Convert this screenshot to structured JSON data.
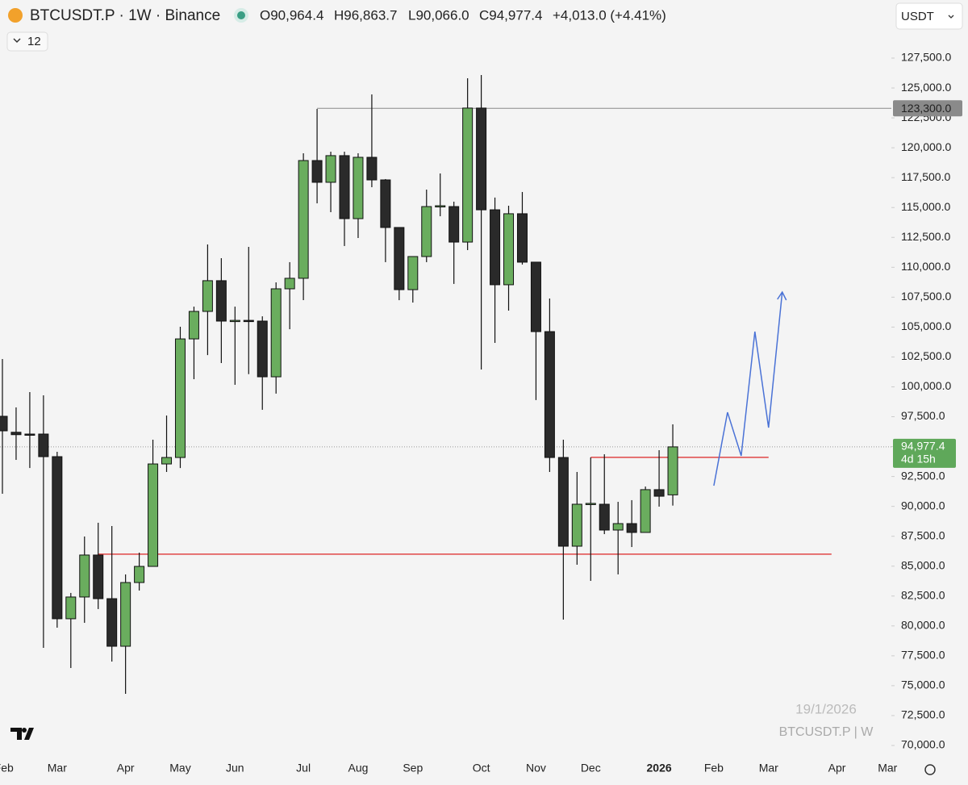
{
  "chart_data": {
    "type": "candlestick",
    "header": {
      "symbol": "BTCUSDT.P · 1W · Binance",
      "open": "O90,964.4",
      "high": "H96,863.7",
      "low": "L90,066.0",
      "close": "C94,977.4",
      "change": "+4,013.0 (+4.41%)"
    },
    "indicator_count": "12",
    "currency": "USDT",
    "watermark_date": "19/1/2026",
    "watermark_symbol": "BTCUSDT.P | W",
    "series": [
      {
        "name": "BTCUSDT.P",
        "up_color": "#6aad5e",
        "down_color": "#2a2a2a",
        "open": [
          97536,
          96200,
          96050,
          96050,
          94160,
          80600,
          82420,
          85930,
          82280,
          78300,
          83630,
          84980,
          93550,
          94090,
          104010,
          106310,
          108880,
          105500,
          105560,
          105500,
          100840,
          108200,
          109080,
          118930,
          117110,
          119340,
          114070,
          119200,
          117310,
          113330,
          108130,
          110900,
          115080,
          115080,
          112110,
          123320,
          114810,
          108540,
          114480,
          110430,
          104620,
          94090,
          86670,
          90180,
          90180,
          88020,
          88560,
          87820,
          91400,
          90964.4
        ],
        "high": [
          102328,
          98280,
          99560,
          99290,
          94570,
          82760,
          87480,
          88630,
          88360,
          84310,
          86130,
          95580,
          97600,
          105030,
          106710,
          111910,
          110760,
          106710,
          111710,
          105900,
          108740,
          110430,
          119540,
          123250,
          119670,
          119670,
          119540,
          124460,
          117380,
          113330,
          110900,
          116500,
          117850,
          115490,
          125810,
          126080,
          115830,
          115150,
          116300,
          110430,
          107390,
          95580,
          92880,
          94090,
          94360,
          90380,
          90520,
          91660,
          94700,
          96863.7
        ],
        "low": [
          91057,
          93890,
          93210,
          78170,
          79850,
          76480,
          80260,
          81410,
          77020,
          74320,
          82960,
          84980,
          92880,
          93210,
          100640,
          102660,
          101990,
          100170,
          101060,
          98080,
          99430,
          104820,
          107250,
          115350,
          114610,
          111780,
          112450,
          116700,
          110430,
          107250,
          107050,
          110430,
          114270,
          108610,
          111440,
          101450,
          103680,
          106380,
          110230,
          98890,
          92880,
          80530,
          85120,
          83770,
          87680,
          84310,
          86600,
          87820,
          89980,
          90066.0
        ],
        "close": [
          96321,
          96000,
          96000,
          94160,
          80600,
          82420,
          85930,
          82280,
          78300,
          83630,
          84980,
          93550,
          94090,
          104010,
          106310,
          108880,
          105500,
          105560,
          105500,
          100840,
          108200,
          109080,
          118930,
          117110,
          119340,
          114070,
          119200,
          117310,
          113330,
          108130,
          110900,
          115080,
          115150,
          112110,
          123320,
          114810,
          108540,
          114480,
          110430,
          104620,
          94090,
          86670,
          90180,
          90250,
          88020,
          88560,
          87820,
          91400,
          90850,
          94977.4
        ]
      }
    ],
    "price_label": "94,977.4",
    "countdown": "4d 15h",
    "price_color": "#5fa85a",
    "levels": [
      {
        "value": 123300,
        "label": "123,300.0",
        "color": "#8a8a8a",
        "from": 23
      },
      {
        "value": 86000,
        "color": "#e04646",
        "from": 7,
        "to": 60.6
      },
      {
        "value": 94100,
        "color": "#e04646",
        "from": 43,
        "to": 56
      }
    ],
    "projection": {
      "color": "#4a72d6",
      "x": [
        52,
        53,
        54,
        55,
        56,
        57
      ],
      "values": [
        91730,
        97870,
        94230,
        104620,
        96590,
        107930
      ]
    },
    "ylim": [
      68920,
      132360
    ],
    "yticks": [
      {
        "value": 70000,
        "label": "70,000.0"
      },
      {
        "value": 72500,
        "label": "72,500.0"
      },
      {
        "value": 75000,
        "label": "75,000.0"
      },
      {
        "value": 77500,
        "label": "77,500.0"
      },
      {
        "value": 80000,
        "label": "80,000.0"
      },
      {
        "value": 82500,
        "label": "82,500.0"
      },
      {
        "value": 85000,
        "label": "85,000.0"
      },
      {
        "value": 87500,
        "label": "87,500.0"
      },
      {
        "value": 90000,
        "label": "90,000.0"
      },
      {
        "value": 92500,
        "label": "92,500.0"
      },
      {
        "value": 95000,
        "label": "95,000.0"
      },
      {
        "value": 97500,
        "label": "97,500.0"
      },
      {
        "value": 100000,
        "label": "100,000.0"
      },
      {
        "value": 102500,
        "label": "102,500.0"
      },
      {
        "value": 105000,
        "label": "105,000.0"
      },
      {
        "value": 107500,
        "label": "107,500.0"
      },
      {
        "value": 110000,
        "label": "110,000.0"
      },
      {
        "value": 112500,
        "label": "112,500.0"
      },
      {
        "value": 115000,
        "label": "115,000.0"
      },
      {
        "value": 117500,
        "label": "117,500.0"
      },
      {
        "value": 120000,
        "label": "120,000.0"
      },
      {
        "value": 122500,
        "label": "122,500.0"
      },
      {
        "value": 125000,
        "label": "125,000.0"
      },
      {
        "value": 127500,
        "label": "127,500.0"
      }
    ],
    "xticks": [
      {
        "value": 0.1,
        "label": "Feb"
      },
      {
        "value": 4,
        "label": "Mar"
      },
      {
        "value": 9,
        "label": "Apr"
      },
      {
        "value": 13,
        "label": "May"
      },
      {
        "value": 17,
        "label": "Jun"
      },
      {
        "value": 22,
        "label": "Jul"
      },
      {
        "value": 26,
        "label": "Aug"
      },
      {
        "value": 30,
        "label": "Sep"
      },
      {
        "value": 35,
        "label": "Oct"
      },
      {
        "value": 39,
        "label": "Nov"
      },
      {
        "value": 43,
        "label": "Dec"
      },
      {
        "value": 48,
        "label": "2026"
      },
      {
        "value": 52,
        "label": "Feb"
      },
      {
        "value": 56,
        "label": "Mar"
      },
      {
        "value": 61,
        "label": "Apr"
      },
      {
        "value": 64.7,
        "label": "Mar"
      }
    ]
  }
}
